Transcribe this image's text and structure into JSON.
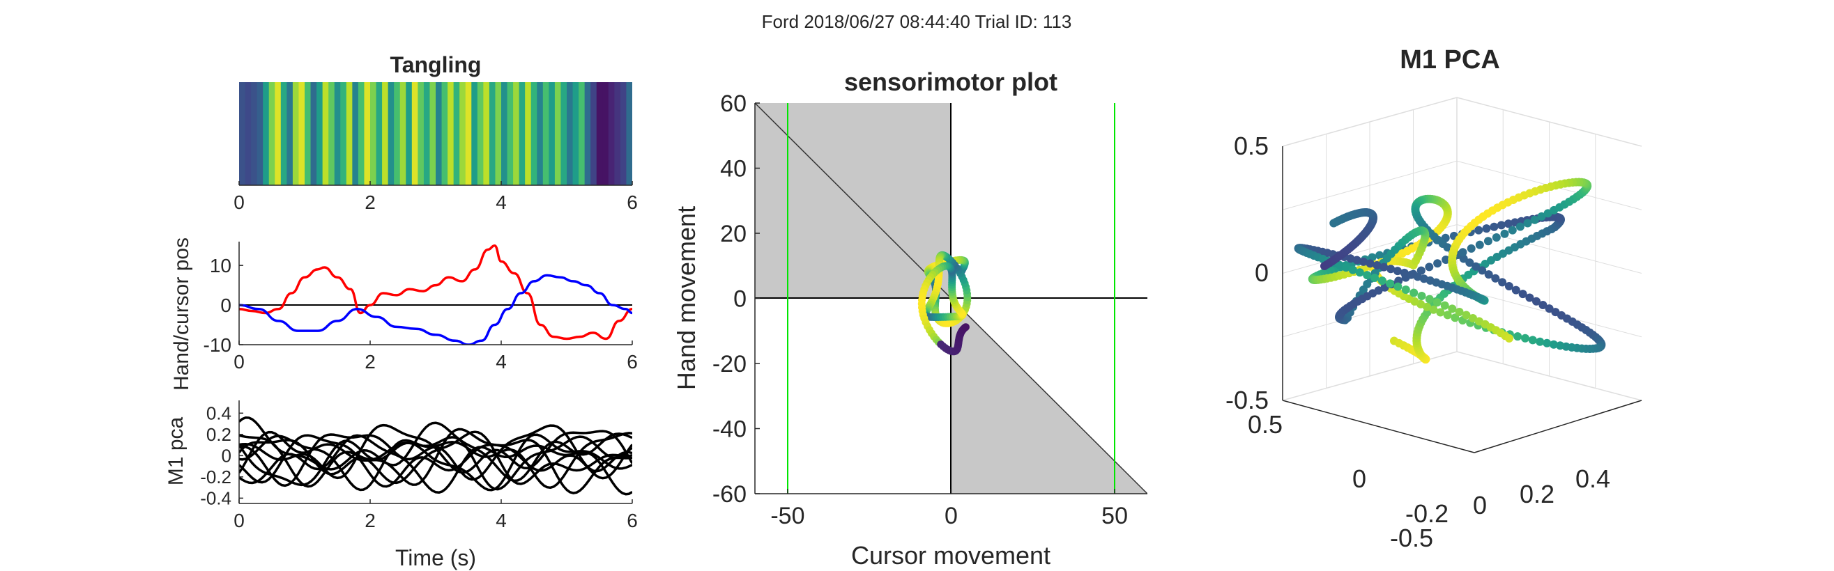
{
  "figure": {
    "suptitle": "Ford 2018/06/27 08:44:40 Trial ID: 113"
  },
  "chart_data": [
    {
      "type": "heatmap",
      "title": "Tangling",
      "xlim": [
        0,
        6
      ],
      "xticks": [
        "0",
        "2",
        "4",
        "6"
      ],
      "colormap": "viridis",
      "stripe_values": [
        0.25,
        0.22,
        0.25,
        0.3,
        0.55,
        0.8,
        0.95,
        0.6,
        0.4,
        0.85,
        0.95,
        0.7,
        0.35,
        0.55,
        0.9,
        0.75,
        0.5,
        0.65,
        0.9,
        0.45,
        0.7,
        0.95,
        0.8,
        0.6,
        0.9,
        0.5,
        0.7,
        0.85,
        0.55,
        0.95,
        0.75,
        0.6,
        0.8,
        0.45,
        0.7,
        0.9,
        0.65,
        0.85,
        0.95,
        0.55,
        0.75,
        0.9,
        0.6,
        0.8,
        0.5,
        0.7,
        0.85,
        0.6,
        0.9,
        0.65,
        0.45,
        0.7,
        0.55,
        0.8,
        0.6,
        0.4,
        0.55,
        0.7,
        0.35,
        0.2,
        0.05,
        0.05,
        0.1,
        0.15,
        0.2,
        0.35
      ]
    },
    {
      "type": "line",
      "ylabel": "Hand/cursor pos",
      "xlim": [
        0,
        6
      ],
      "ylim": [
        -10,
        16
      ],
      "xticks": [
        "0",
        "2",
        "4",
        "6"
      ],
      "yticks": [
        "-10",
        "0",
        "10"
      ],
      "zero_line": true,
      "series": [
        {
          "color": "#ff0000",
          "x": [
            0,
            0.2,
            0.4,
            0.6,
            0.8,
            1.0,
            1.2,
            1.3,
            1.5,
            1.7,
            1.85,
            2.0,
            2.2,
            2.4,
            2.6,
            2.8,
            3.0,
            3.2,
            3.4,
            3.6,
            3.8,
            3.9,
            4.0,
            4.2,
            4.4,
            4.6,
            4.8,
            5.0,
            5.2,
            5.4,
            5.6,
            5.8,
            6.0
          ],
          "y": [
            -1,
            -1.5,
            -2,
            -1,
            3,
            7,
            9,
            9.5,
            7,
            4,
            -2,
            0,
            3,
            2.5,
            4,
            3.5,
            5,
            7,
            6,
            9,
            14,
            15,
            11,
            8,
            3,
            -5,
            -8,
            -8.5,
            -8,
            -7,
            -8.5,
            -4,
            -1
          ]
        },
        {
          "color": "#0000ff",
          "x": [
            0,
            0.3,
            0.6,
            0.9,
            1.2,
            1.5,
            1.8,
            2.1,
            2.4,
            2.7,
            3.0,
            3.3,
            3.5,
            3.7,
            3.9,
            4.1,
            4.3,
            4.5,
            4.7,
            4.9,
            5.1,
            5.3,
            5.5,
            5.7,
            5.9,
            6.0
          ],
          "y": [
            0,
            -1,
            -4,
            -6.5,
            -6.5,
            -4,
            -1,
            -3,
            -5.5,
            -6,
            -7.5,
            -9,
            -10,
            -9,
            -5,
            -1,
            3,
            6,
            7.5,
            7,
            6,
            5,
            3,
            0,
            -1,
            -2
          ]
        }
      ]
    },
    {
      "type": "line",
      "xlabel": "Time (s)",
      "ylabel": "M1 pca",
      "xlim": [
        0,
        6
      ],
      "ylim": [
        -0.45,
        0.52
      ],
      "xticks": [
        "0",
        "2",
        "4",
        "6"
      ],
      "yticks": [
        "-0.4",
        "-0.2",
        "0",
        "0.2",
        "0.4"
      ],
      "series_count": 10,
      "color": "#000000"
    },
    {
      "type": "scatter",
      "title": "sensorimotor plot",
      "xlabel": "Cursor movement",
      "ylabel": "Hand movement",
      "xlim": [
        -60,
        60
      ],
      "ylim": [
        -60,
        60
      ],
      "xticks": [
        "-50",
        "0",
        "50"
      ],
      "yticks": [
        "-60",
        "-40",
        "-20",
        "0",
        "20",
        "40",
        "60"
      ],
      "shaded_regions": [
        "x<0,y>0",
        "x>0,y<0 below -x line"
      ],
      "vlines": [
        -50,
        50
      ],
      "vline_color": "#00e600",
      "colormap": "viridis"
    },
    {
      "type": "scatter",
      "title": "M1 PCA",
      "projection": "3d",
      "zticks": [
        "-0.5",
        "0",
        "0.5"
      ],
      "yticks": [
        "-0.5",
        "0",
        "0.5"
      ],
      "xticks": [
        "-0.2",
        "0",
        "0.2",
        "0.4"
      ],
      "colormap": "viridis"
    }
  ]
}
